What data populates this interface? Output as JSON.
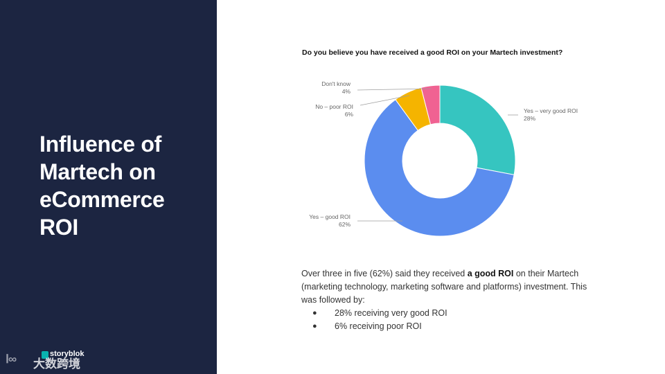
{
  "slide": {
    "title_lines": [
      "Influence of",
      "Martech on",
      "eCommerce",
      "ROI"
    ]
  },
  "brand": {
    "name": "storyblok",
    "watermark_text": "大数跨境",
    "watermark_glyph": "Ⅰ∞"
  },
  "chart_data": {
    "type": "pie",
    "donut": true,
    "title": "Do you believe you have received a good ROI on your Martech investment?",
    "slices": [
      {
        "label": "Yes – very good ROI",
        "value": 28,
        "value_label": "28%",
        "color": "#36c5c0"
      },
      {
        "label": "Yes – good ROI",
        "value": 62,
        "value_label": "62%",
        "color": "#5b8def"
      },
      {
        "label": "No – poor ROI",
        "value": 6,
        "value_label": "6%",
        "color": "#f5b400"
      },
      {
        "label": "Don't know",
        "value": 4,
        "value_label": "4%",
        "color": "#f06292"
      }
    ]
  },
  "description": {
    "intro_before": "Over three in five (62%) said they received ",
    "intro_bold": "a good ROI",
    "intro_after": " on their Martech (marketing technology, marketing software and platforms) investment. This was followed by:",
    "bullets": [
      "28% receiving very good ROI",
      "6% receiving poor ROI"
    ],
    "bullet_symbol": "●"
  }
}
